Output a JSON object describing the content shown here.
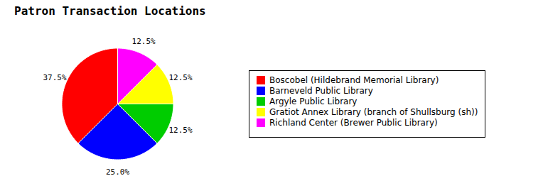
{
  "chart_data": {
    "type": "pie",
    "title": "Patron Transaction Locations",
    "categories": [
      "Boscobel (Hildebrand Memorial Library)",
      "Barneveld Public Library",
      "Argyle Public Library",
      "Gratiot Annex Library (branch of Shullsburg (sh))",
      "Richland Center (Brewer Public Library)"
    ],
    "values": [
      37.5,
      25.0,
      12.5,
      12.5,
      12.5
    ],
    "value_labels": [
      "37.5%",
      "25.0%",
      "12.5%",
      "12.5%",
      "12.5%"
    ],
    "colors": [
      "#FF0000",
      "#0000FF",
      "#00CC00",
      "#FFFF00",
      "#FF00FF"
    ],
    "data_labels": true,
    "legend": "right"
  }
}
